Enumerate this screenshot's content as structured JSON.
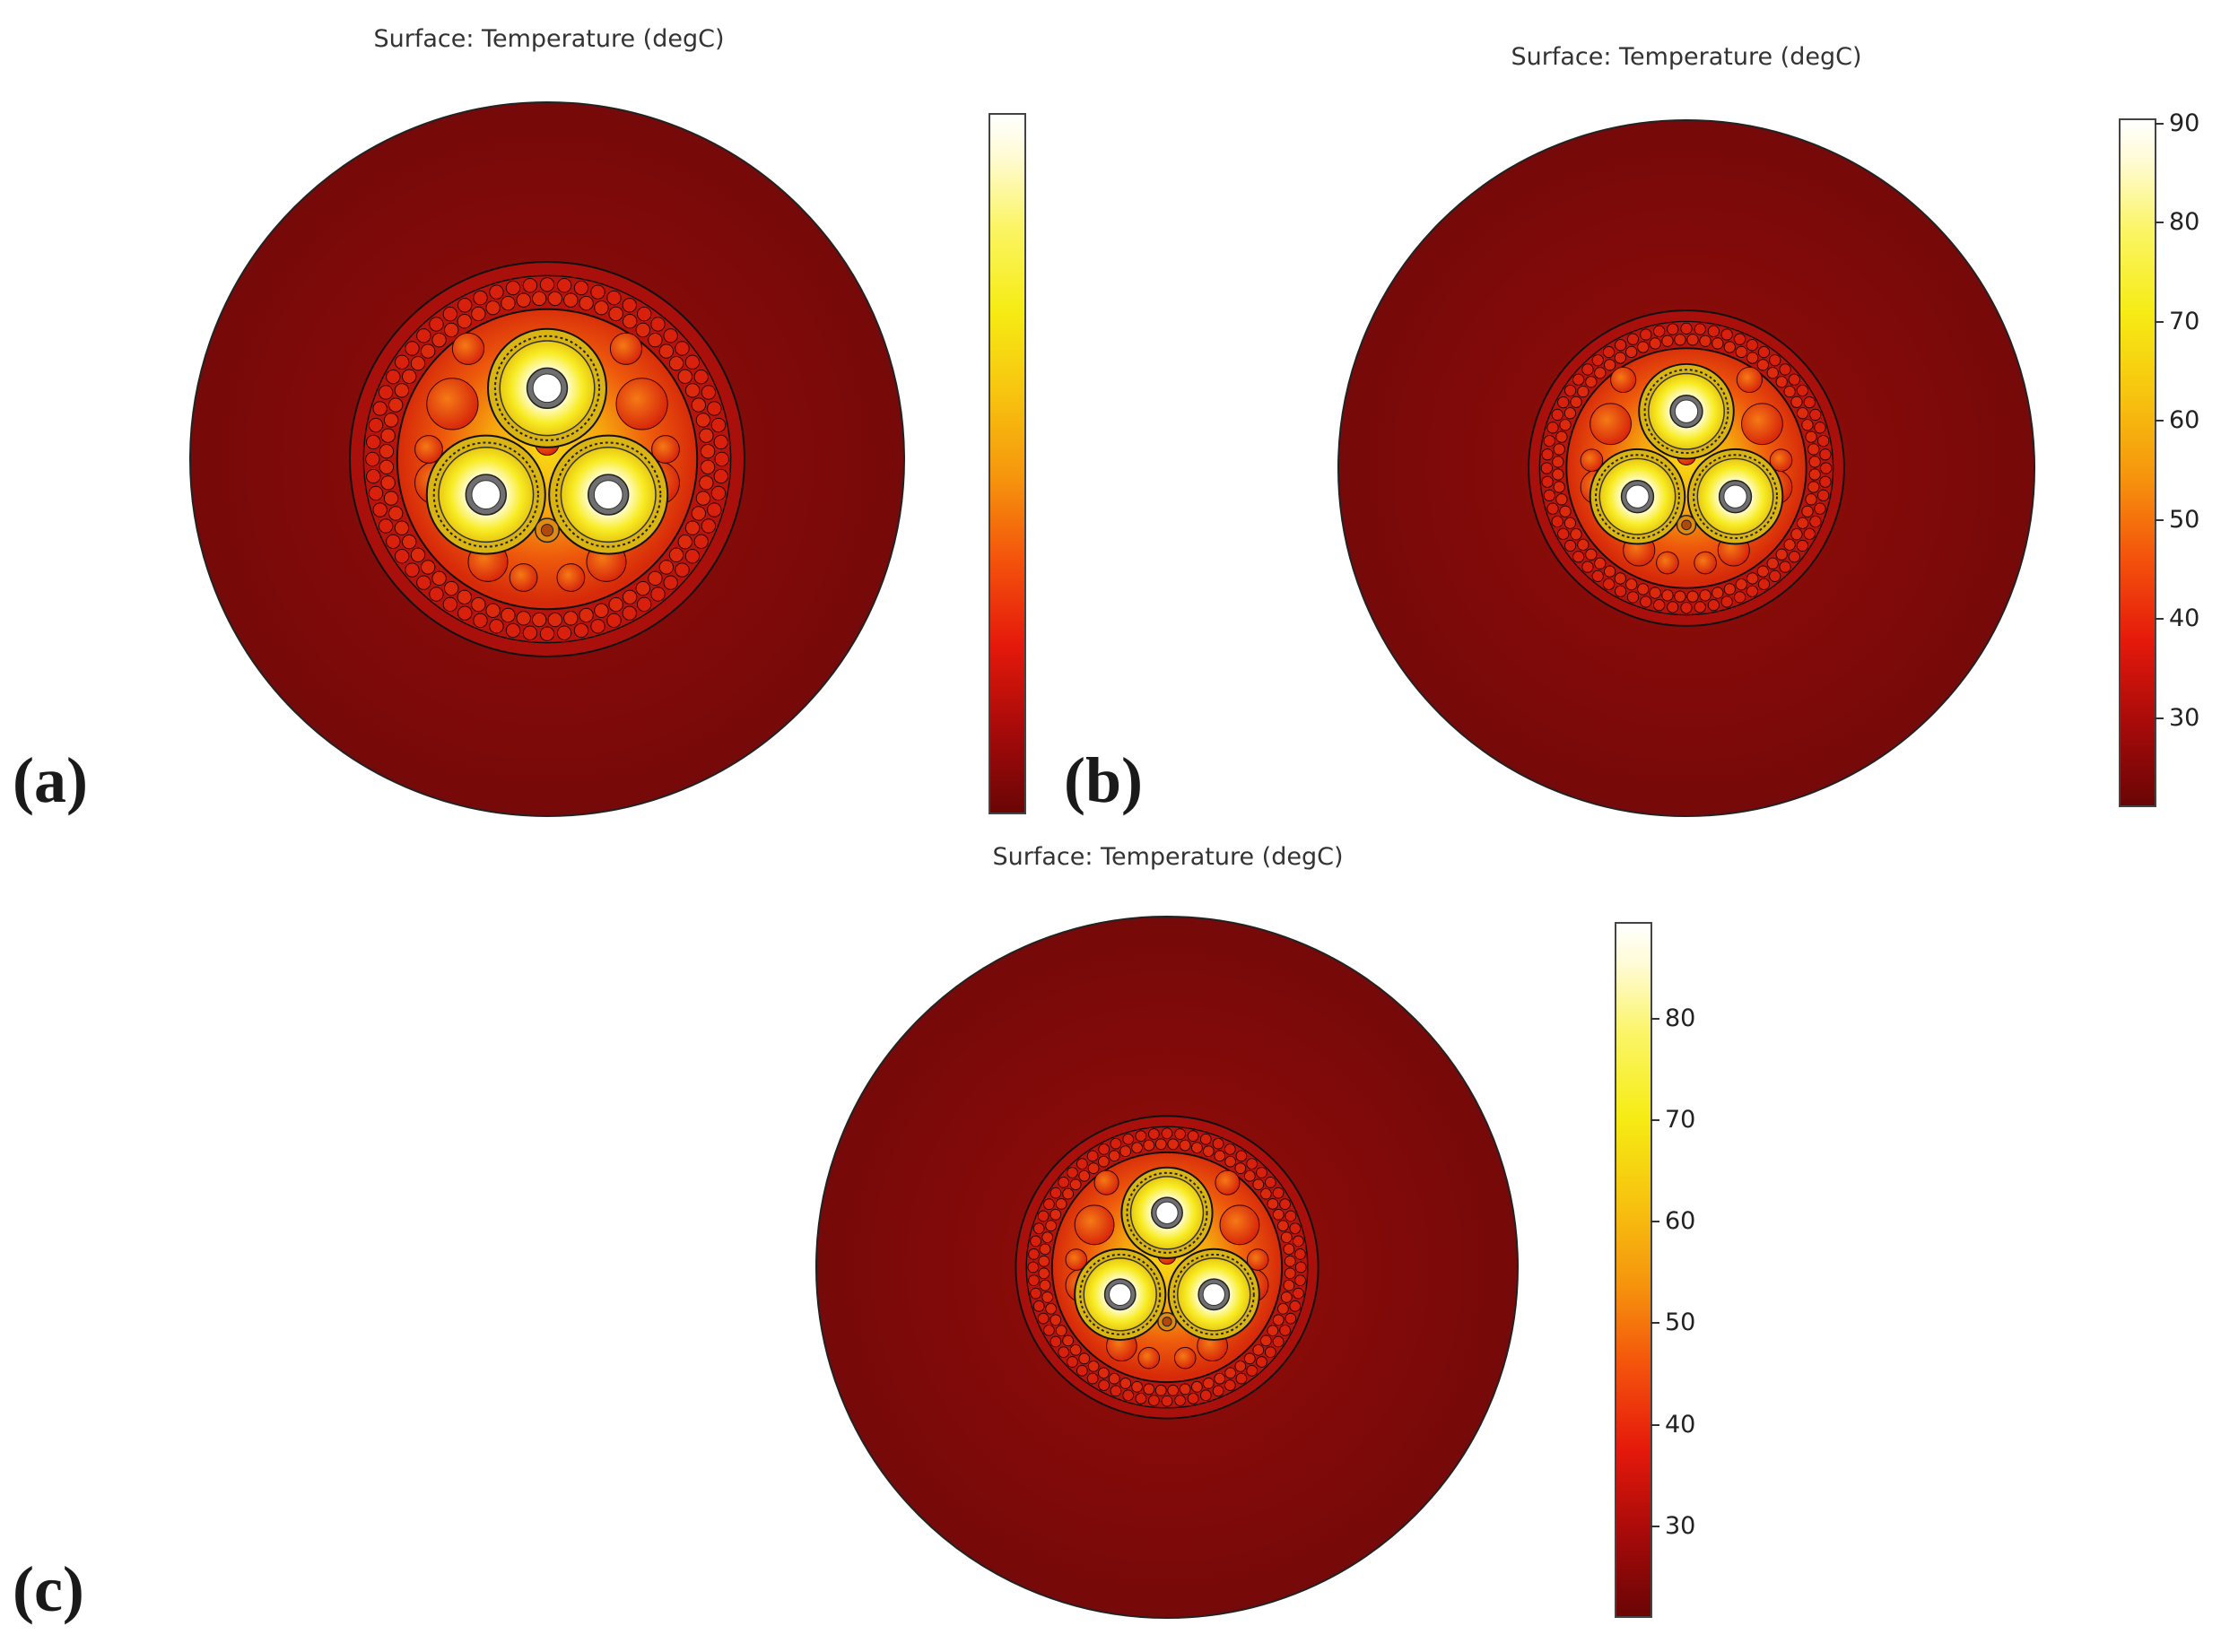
{
  "panels": [
    {
      "letter": "(a)",
      "title": "Surface: Temperature (degC)",
      "colorbar": {
        "ticks": []
      }
    },
    {
      "letter": "(b)",
      "title": "Surface: Temperature (degC)",
      "colorbar": {
        "ticks": [
          "90",
          "80",
          "70",
          "60",
          "50",
          "40",
          "30"
        ]
      }
    },
    {
      "letter": "(c)",
      "title": "Surface: Temperature (degC)",
      "colorbar": {
        "ticks": [
          "80",
          "70",
          "60",
          "50",
          "40",
          "30"
        ]
      }
    }
  ],
  "colors": {
    "outer_soil": "#7a0b0b",
    "hot_core": "#fffde0",
    "yellow": "#f6e50e",
    "orange": "#f08a10",
    "red": "#e0260c",
    "dark_red": "#6e0606"
  }
}
